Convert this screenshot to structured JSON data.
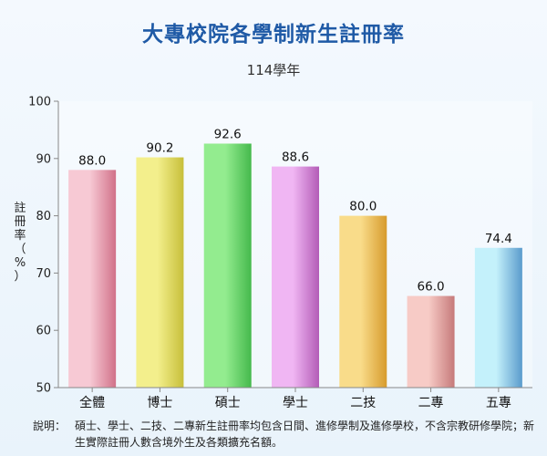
{
  "title": "大專校院各學制新生註冊率",
  "subtitle": "114學年",
  "note_label": "說明：",
  "note_text": "碩士、學士、二技、二專新生註冊率均包含日間、進修學制及進修學校，不含宗教研修學院；新生實際註冊人數含境外生及各類擴充名額。",
  "colors": {
    "title": "#1f5aa6",
    "bars": [
      [
        "#f7c9d4",
        "#d17189"
      ],
      [
        "#f3ef8c",
        "#c7bf3a"
      ],
      [
        "#93ec8f",
        "#45b94c"
      ],
      [
        "#f0b6f3",
        "#b35cb7"
      ],
      [
        "#f9dc8a",
        "#d79b2c"
      ],
      [
        "#f7cbc6",
        "#c67a7a"
      ],
      [
        "#c4f1fb",
        "#5a9bcc"
      ]
    ]
  },
  "chart_data": {
    "type": "bar",
    "title": "大專校院各學制新生註冊率",
    "subtitle": "114學年",
    "categories": [
      "全體",
      "博士",
      "碩士",
      "學士",
      "二技",
      "二專",
      "五專"
    ],
    "values": [
      88.0,
      90.2,
      92.6,
      88.6,
      80.0,
      66.0,
      74.4
    ],
    "value_labels": [
      "88.0",
      "90.2",
      "92.6",
      "88.6",
      "80.0",
      "66.0",
      "74.4"
    ],
    "ylabel_chars": [
      "註",
      "冊",
      "率",
      "（",
      "%",
      "）"
    ],
    "ylim": [
      50,
      100
    ],
    "yticks": [
      50,
      60,
      70,
      80,
      90,
      100
    ],
    "grid": false,
    "legend": "none"
  }
}
